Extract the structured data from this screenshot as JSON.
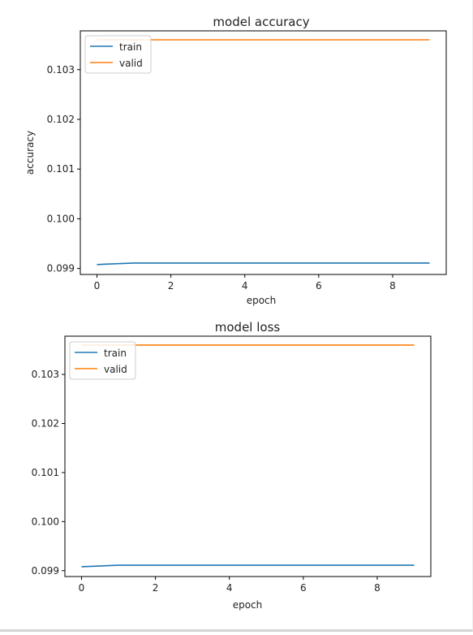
{
  "chart_data": [
    {
      "type": "line",
      "title": "model accuracy",
      "xlabel": "epoch",
      "ylabel": "accuracy",
      "x": [
        0,
        1,
        2,
        3,
        4,
        5,
        6,
        7,
        8,
        9
      ],
      "xlim": [
        -0.45,
        9.45
      ],
      "ylim": [
        0.09888,
        0.10378
      ],
      "xticks": [
        0,
        2,
        4,
        6,
        8
      ],
      "xtick_labels": [
        "0",
        "2",
        "4",
        "6",
        "8"
      ],
      "yticks": [
        0.099,
        0.1,
        0.101,
        0.102,
        0.103
      ],
      "ytick_labels": [
        "0.099",
        "0.100",
        "0.101",
        "0.102",
        "0.103"
      ],
      "grid": false,
      "legend_position": "upper-left",
      "series": [
        {
          "name": "train",
          "color": "#1f77b4",
          "values": [
            0.09908,
            0.09911,
            0.09911,
            0.09911,
            0.09911,
            0.09911,
            0.09911,
            0.09911,
            0.09911,
            0.09911
          ]
        },
        {
          "name": "valid",
          "color": "#ff7f0e",
          "values": [
            0.1036,
            0.1036,
            0.1036,
            0.1036,
            0.1036,
            0.1036,
            0.1036,
            0.1036,
            0.1036,
            0.1036
          ]
        }
      ]
    },
    {
      "type": "line",
      "title": "model loss",
      "xlabel": "epoch",
      "ylabel": "",
      "x": [
        0,
        1,
        2,
        3,
        4,
        5,
        6,
        7,
        8,
        9
      ],
      "xlim": [
        -0.45,
        9.45
      ],
      "ylim": [
        0.09888,
        0.10378
      ],
      "xticks": [
        0,
        2,
        4,
        6,
        8
      ],
      "xtick_labels": [
        "0",
        "2",
        "4",
        "6",
        "8"
      ],
      "yticks": [
        0.099,
        0.1,
        0.101,
        0.102,
        0.103
      ],
      "ytick_labels": [
        "0.099",
        "0.100",
        "0.101",
        "0.102",
        "0.103"
      ],
      "grid": false,
      "legend_position": "upper-left",
      "series": [
        {
          "name": "train",
          "color": "#1f77b4",
          "values": [
            0.09908,
            0.09911,
            0.09911,
            0.09911,
            0.09911,
            0.09911,
            0.09911,
            0.09911,
            0.09911,
            0.09911
          ]
        },
        {
          "name": "valid",
          "color": "#ff7f0e",
          "values": [
            0.1036,
            0.1036,
            0.1036,
            0.1036,
            0.1036,
            0.1036,
            0.1036,
            0.1036,
            0.1036,
            0.1036
          ]
        }
      ]
    }
  ]
}
